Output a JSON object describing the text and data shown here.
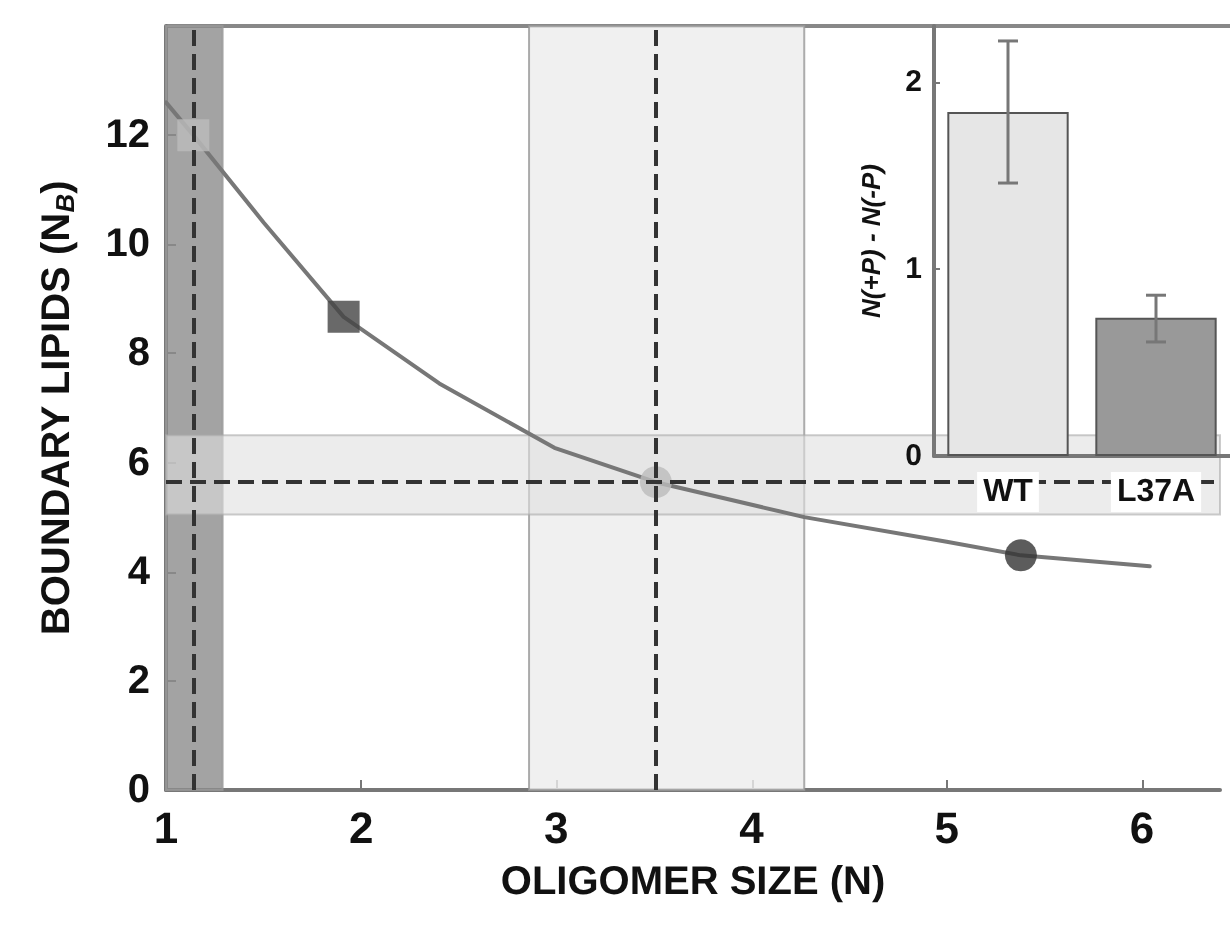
{
  "chart_data": [
    {
      "type": "line",
      "xlabel": "OLIGOMER SIZE (N)",
      "ylabel": "BOUNDARY LIPIDS (N$_{B}$)",
      "xlim": [
        1,
        6.4
      ],
      "ylim": [
        0,
        14
      ],
      "xticks": [
        1,
        2,
        3,
        4,
        5,
        6
      ],
      "yticks": [
        0,
        2,
        4,
        6,
        8,
        10,
        12
      ],
      "grid": false,
      "series": [
        {
          "color": "#777777",
          "marker": "none",
          "x": [
            1,
            1.14,
            1.5,
            1.91,
            2.4,
            2.99,
            3.51,
            4.27,
            5.0,
            5.38,
            6.04
          ],
          "values": [
            12.6,
            12.0,
            10.4,
            8.67,
            7.45,
            6.27,
            5.64,
            5.0,
            4.55,
            4.3,
            4.1
          ]
        },
        {
          "type": "scatter",
          "color": "#bbbbbb",
          "marker": "square",
          "x": [
            1.14
          ],
          "values": [
            12.0
          ]
        },
        {
          "type": "scatter",
          "color": "#444444",
          "marker": "square",
          "x": [
            1.91
          ],
          "values": [
            8.67
          ]
        },
        {
          "type": "scatter",
          "color": "#bbbbbb",
          "marker": "circle",
          "x": [
            3.51
          ],
          "values": [
            5.64
          ]
        },
        {
          "type": "scatter",
          "color": "#333333",
          "marker": "circle",
          "x": [
            5.38
          ],
          "values": [
            4.3
          ]
        }
      ],
      "bands": [
        {
          "axis": "x",
          "from": 1,
          "to": 1.29,
          "color": "#8c8c8c"
        },
        {
          "axis": "x",
          "from": 2.86,
          "to": 4.27,
          "color": "#ececec"
        },
        {
          "axis": "y",
          "from": 5.05,
          "to": 6.5,
          "color": "#e0e0e0"
        }
      ],
      "ref_lines": [
        {
          "axis": "x",
          "value": 1.14,
          "color": "#333333",
          "line_style": "dashed"
        },
        {
          "axis": "x",
          "value": 3.51,
          "color": "#333333",
          "line_style": "dashed"
        },
        {
          "axis": "y",
          "value": 5.64,
          "color": "#333333",
          "line_style": "dashed"
        }
      ]
    },
    {
      "type": "bar",
      "ylabel": "N(+P) - N(-P)",
      "categories": [
        "WT",
        "L37A"
      ],
      "values": [
        1.84,
        0.74
      ],
      "colors": [
        "#e6e6e6",
        "#999999"
      ],
      "errors": [
        [
          1.46,
          2.22
        ],
        [
          0.61,
          0.86
        ]
      ],
      "ylim": [
        0,
        2.3
      ],
      "yticks": [
        0,
        1,
        2
      ]
    }
  ]
}
